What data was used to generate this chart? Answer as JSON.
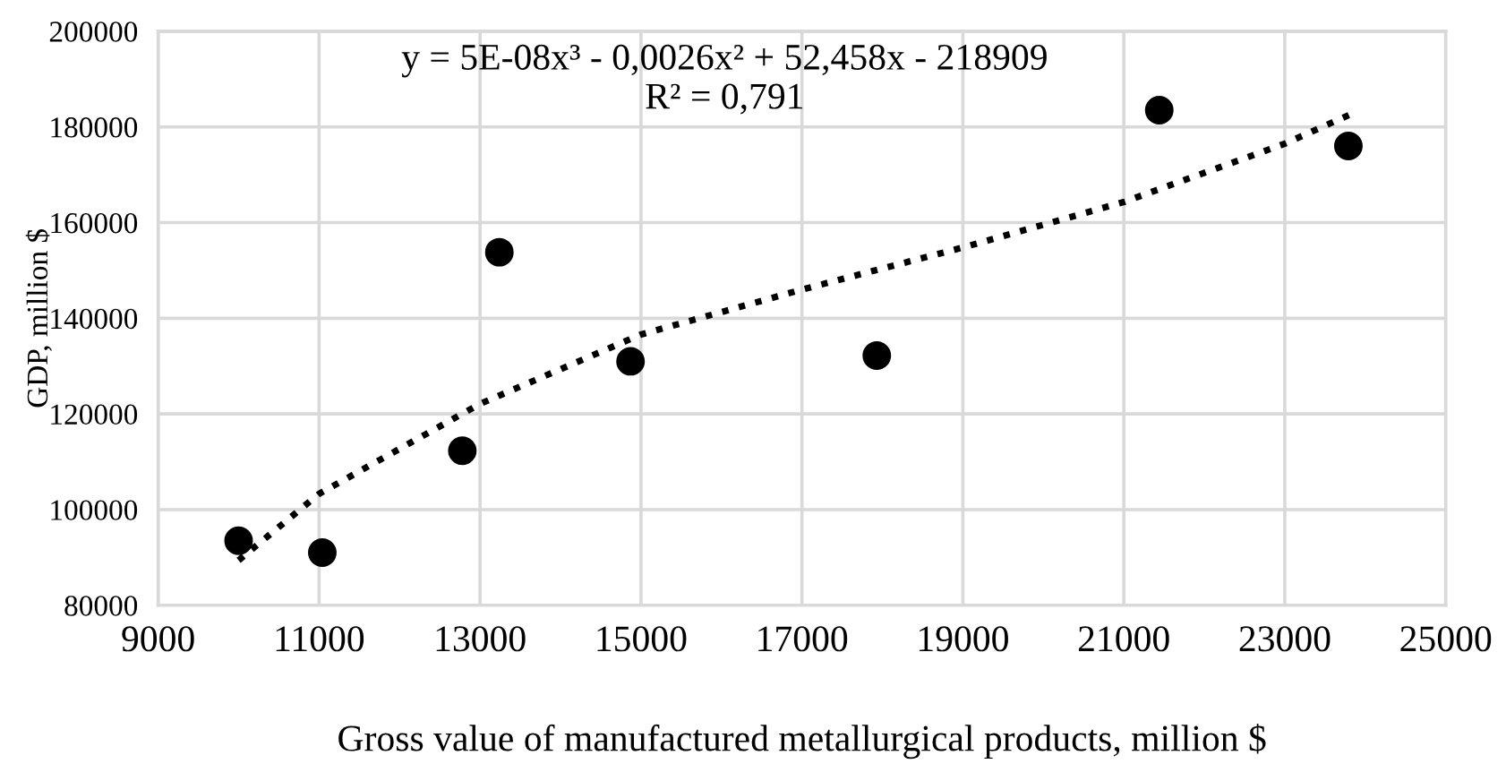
{
  "chart_data": {
    "type": "scatter",
    "xlabel": "Gross value of manufactured metallurgical products, million $",
    "ylabel": "GDP, million $",
    "x": [
      10000,
      11040,
      12780,
      13240,
      14870,
      17930,
      21440,
      23790
    ],
    "series": [
      {
        "color": "#000000",
        "marker": "circle",
        "values": [
          93500,
          91000,
          112300,
          153800,
          131000,
          132200,
          183500,
          176000
        ]
      },
      {
        "type": "line",
        "color": "#000000",
        "line_style": "dotted",
        "marker": "none",
        "x": [
          10000,
          11000,
          13000,
          15000,
          17000,
          19000,
          21000,
          23000,
          23800
        ],
        "values": [
          89400,
          103300,
          122100,
          136600,
          146000,
          154800,
          164300,
          176500,
          182500
        ]
      }
    ],
    "xlim": [
      9000,
      25000
    ],
    "xticks": [
      9000,
      11000,
      13000,
      15000,
      17000,
      19000,
      21000,
      23000,
      25000
    ],
    "ylim": [
      80000,
      200000
    ],
    "yticks": [
      80000,
      100000,
      120000,
      140000,
      160000,
      180000,
      200000
    ],
    "grid": true,
    "legend": false,
    "annotations": [
      "y = 5E-08x³ - 0,0026x² + 52,458x - 218909\nR² = 0,791"
    ]
  }
}
